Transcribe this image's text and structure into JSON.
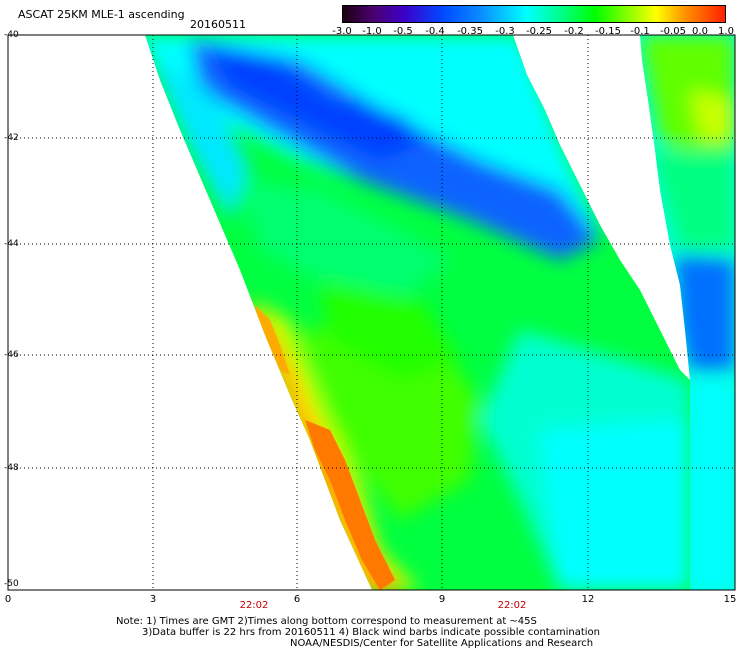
{
  "title": "ASCAT 25KM MLE-1 ascending",
  "date": "20160511",
  "colorbar": {
    "labels": [
      "-3.0",
      "-1.0",
      "-0.5",
      "-0.4",
      "-0.35",
      "-0.3",
      "-0.25",
      "-0.2",
      "-0.15",
      "-0.1",
      "-0.05",
      "0.0",
      "1.0"
    ]
  },
  "axes": {
    "y_labels": [
      "-40",
      "-42",
      "-44",
      "-46",
      "-48",
      "-50"
    ],
    "x_labels": [
      "0",
      "3",
      "6",
      "9",
      "12",
      "15"
    ],
    "time_labels": [
      "22:02",
      "22:02"
    ]
  },
  "notes": {
    "line1": "Note: 1) Times are GMT 2)Times along bottom correspond to measurement at ~45S",
    "line2": "3)Data buffer is 22 hrs from 20160511 4) Black wind barbs indicate possible contamination",
    "line3": "NOAA/NESDIS/Center for Satellite Applications and Research"
  },
  "colors": {
    "blue": "#0064ff",
    "cyan": "#00ffff",
    "green": "#00ff00",
    "yellow": "#ffff00",
    "orange": "#ff8c00"
  }
}
